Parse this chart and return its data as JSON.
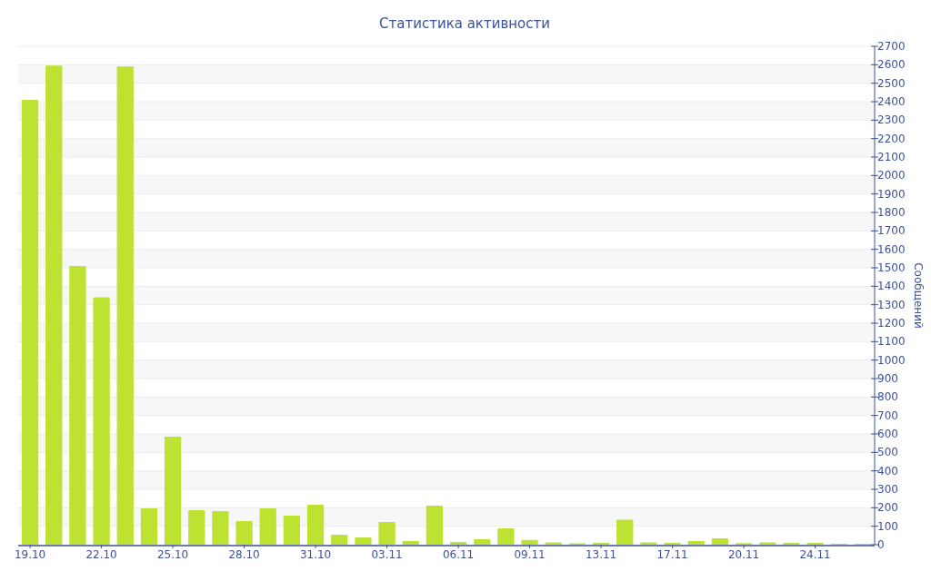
{
  "chart_data": {
    "type": "bar",
    "title": "Статистика активности",
    "ylabel": "Сообщений",
    "categories": [
      "19.10",
      null,
      null,
      "22.10",
      null,
      null,
      "25.10",
      null,
      null,
      "28.10",
      null,
      null,
      "31.10",
      null,
      null,
      "03.11",
      null,
      null,
      "06.11",
      null,
      null,
      "09.11",
      null,
      null,
      "13.11",
      null,
      null,
      "17.11",
      null,
      null,
      "20.11",
      null,
      null,
      "24.11",
      null,
      null
    ],
    "values": [
      2410,
      2595,
      1510,
      1340,
      2590,
      197,
      585,
      187,
      182,
      128,
      197,
      157,
      216,
      54,
      39,
      123,
      20,
      212,
      15,
      30,
      88,
      26,
      12,
      7,
      10,
      135,
      12,
      10,
      20,
      35,
      9,
      12,
      10,
      10,
      5,
      5
    ],
    "color": "#bee232",
    "ylim": [
      0,
      2700
    ],
    "yticks": [
      0,
      100,
      200,
      300,
      400,
      500,
      600,
      700,
      800,
      900,
      1000,
      1100,
      1200,
      1300,
      1400,
      1500,
      1600,
      1700,
      1800,
      1900,
      2000,
      2100,
      2200,
      2300,
      2400,
      2500,
      2600,
      2700
    ],
    "grid": "y"
  }
}
